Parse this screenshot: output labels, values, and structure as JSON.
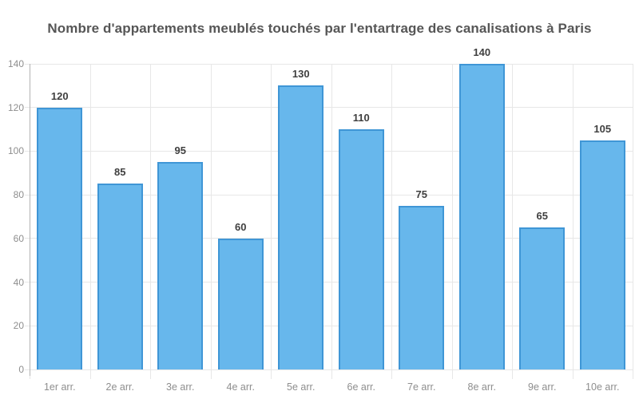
{
  "chart_data": {
    "type": "bar",
    "title": "Nombre d'appartements meublés touchés par l'entartrage des canalisations à Paris",
    "categories": [
      "1er arr.",
      "2e arr.",
      "3e arr.",
      "4e arr.",
      "5e arr.",
      "6e arr.",
      "7e arr.",
      "8e arr.",
      "9e arr.",
      "10e arr."
    ],
    "values": [
      120,
      85,
      95,
      60,
      130,
      110,
      75,
      140,
      65,
      105
    ],
    "xlabel": "",
    "ylabel": "",
    "ylim": [
      0,
      140
    ],
    "y_ticks": [
      0,
      20,
      40,
      60,
      80,
      100,
      120,
      140
    ],
    "grid": true,
    "value_labels_shown": true,
    "legend": "none"
  },
  "colors": {
    "background": "#ffffff",
    "bar_fill": "#67b7ec",
    "bar_border": "#3f96d6",
    "gridline": "#e7e7e7",
    "axis_line": "#b3b3b3",
    "title_text": "#565656",
    "tick_text": "#8e8e8e",
    "value_text": "#3f3f3f"
  }
}
